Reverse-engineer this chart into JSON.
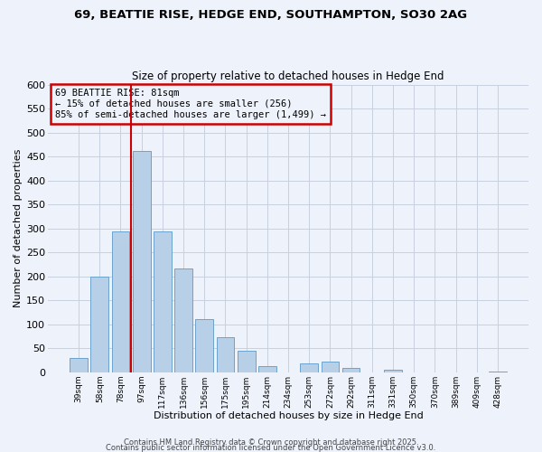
{
  "title1": "69, BEATTIE RISE, HEDGE END, SOUTHAMPTON, SO30 2AG",
  "title2": "Size of property relative to detached houses in Hedge End",
  "xlabel": "Distribution of detached houses by size in Hedge End",
  "ylabel": "Number of detached properties",
  "bar_labels": [
    "39sqm",
    "58sqm",
    "78sqm",
    "97sqm",
    "117sqm",
    "136sqm",
    "156sqm",
    "175sqm",
    "195sqm",
    "214sqm",
    "234sqm",
    "253sqm",
    "272sqm",
    "292sqm",
    "311sqm",
    "331sqm",
    "350sqm",
    "370sqm",
    "389sqm",
    "409sqm",
    "428sqm"
  ],
  "bar_values": [
    30,
    200,
    293,
    462,
    293,
    216,
    110,
    73,
    45,
    13,
    0,
    18,
    22,
    9,
    0,
    5,
    0,
    0,
    0,
    0,
    1
  ],
  "bar_color": "#b8cfe8",
  "bar_edge_color": "#6ba3cc",
  "ylim": [
    0,
    600
  ],
  "yticks": [
    0,
    50,
    100,
    150,
    200,
    250,
    300,
    350,
    400,
    450,
    500,
    550,
    600
  ],
  "vline_color": "#cc0000",
  "vline_x": 2.5,
  "annotation_title": "69 BEATTIE RISE: 81sqm",
  "annotation_line1": "← 15% of detached houses are smaller (256)",
  "annotation_line2": "85% of semi-detached houses are larger (1,499) →",
  "annotation_box_color": "#cc0000",
  "footer1": "Contains HM Land Registry data © Crown copyright and database right 2025.",
  "footer2": "Contains public sector information licensed under the Open Government Licence v3.0.",
  "background_color": "#eef2fb",
  "grid_color": "#c8d0e0"
}
